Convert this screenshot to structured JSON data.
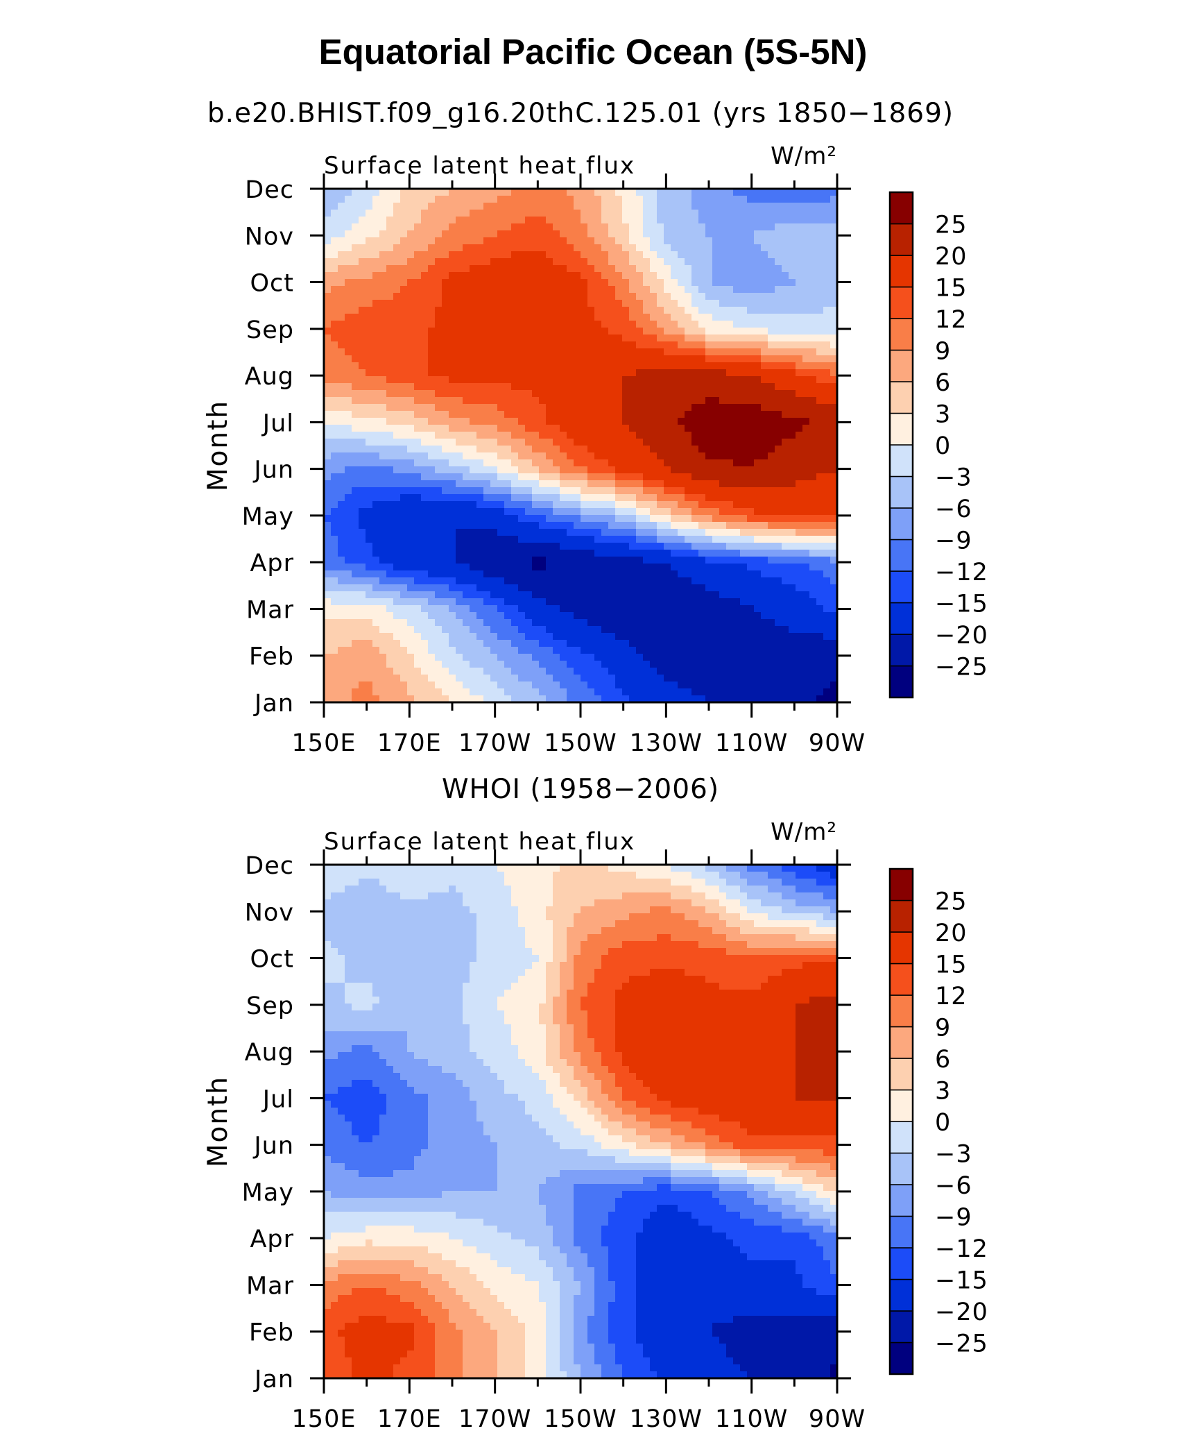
{
  "title": "Equatorial Pacific Ocean (5S-5N)",
  "colors": [
    "#00007F",
    "#0018A8",
    "#0030D8",
    "#1C4CF8",
    "#4875F6",
    "#7EA0F8",
    "#A8C3F8",
    "#D0E2FA",
    "#FFF0E0",
    "#FDD0B0",
    "#FCA87E",
    "#F97E48",
    "#F5501C",
    "#E53500",
    "#B82200",
    "#870000"
  ],
  "colorbar_labels": [
    "−25",
    "−20",
    "−15",
    "−12",
    "−9",
    "−6",
    "−3",
    "0",
    "3",
    "6",
    "9",
    "12",
    "15",
    "20",
    "25"
  ],
  "chart_data": [
    {
      "type": "heatmap",
      "subtitle": "b.e20.BHIST.f09_g16.20thC.125.01 (yrs 1850−1869)",
      "variable_label": "Surface latent heat flux",
      "units_label": "W/m²",
      "ylabel": "Month",
      "xlabel": "",
      "x_ticks": [
        "150E",
        "170E",
        "170W",
        "150W",
        "130W",
        "110W",
        "90W"
      ],
      "y_ticks": [
        "Jan",
        "Feb",
        "Mar",
        "Apr",
        "May",
        "Jun",
        "Jul",
        "Aug",
        "Sep",
        "Oct",
        "Nov",
        "Dec"
      ],
      "x_longitudes": [
        150,
        160,
        170,
        180,
        190,
        200,
        210,
        220,
        230,
        240,
        250,
        260,
        270
      ],
      "z": [
        [
          8,
          10,
          7,
          3,
          -1,
          -5,
          -10,
          -14,
          -18,
          -20,
          -22,
          -24,
          -26
        ],
        [
          6,
          8,
          3,
          -2,
          -6,
          -10,
          -14,
          -18,
          -22,
          -24,
          -24,
          -22,
          -24
        ],
        [
          2,
          2,
          -2,
          -6,
          -12,
          -18,
          -22,
          -24,
          -24,
          -23,
          -20,
          -18,
          -14
        ],
        [
          -10,
          -14,
          -18,
          -20,
          -24,
          -26,
          -24,
          -22,
          -20,
          -16,
          -14,
          -12,
          -10
        ],
        [
          -12,
          -16,
          -20,
          -20,
          -18,
          -12,
          -8,
          -4,
          4,
          10,
          14,
          16,
          16
        ],
        [
          -8,
          -10,
          -8,
          -4,
          0,
          6,
          12,
          16,
          20,
          24,
          25,
          22,
          20
        ],
        [
          0,
          2,
          4,
          8,
          10,
          14,
          18,
          20,
          24,
          28,
          28,
          26,
          24
        ],
        [
          10,
          12,
          14,
          16,
          16,
          16,
          18,
          20,
          22,
          22,
          20,
          16,
          12
        ],
        [
          12,
          14,
          14,
          16,
          18,
          18,
          16,
          14,
          8,
          2,
          0,
          -2,
          -2
        ],
        [
          8,
          10,
          12,
          16,
          18,
          18,
          16,
          10,
          2,
          -6,
          -8,
          -6,
          -4
        ],
        [
          -2,
          2,
          6,
          10,
          12,
          14,
          10,
          4,
          -4,
          -6,
          -6,
          -4,
          -4
        ],
        [
          -6,
          -2,
          4,
          6,
          8,
          10,
          8,
          2,
          -4,
          -8,
          -10,
          -12,
          -10
        ]
      ],
      "zlim": [
        -25,
        25
      ],
      "colorbar_levels": [
        -25,
        -20,
        -15,
        -12,
        -9,
        -6,
        -3,
        0,
        3,
        6,
        9,
        12,
        15,
        20,
        25
      ]
    },
    {
      "type": "heatmap",
      "subtitle": "WHOI (1958−2006)",
      "variable_label": "Surface latent heat flux",
      "units_label": "W/m²",
      "ylabel": "Month",
      "xlabel": "",
      "x_ticks": [
        "150E",
        "170E",
        "170W",
        "150W",
        "130W",
        "110W",
        "90W"
      ],
      "y_ticks": [
        "Jan",
        "Feb",
        "Mar",
        "Apr",
        "May",
        "Jun",
        "Jul",
        "Aug",
        "Sep",
        "Oct",
        "Nov",
        "Dec"
      ],
      "x_longitudes": [
        150,
        160,
        170,
        180,
        190,
        200,
        210,
        220,
        230,
        240,
        250,
        260,
        270
      ],
      "z": [
        [
          12,
          16,
          14,
          10,
          6,
          2,
          -6,
          -12,
          -16,
          -18,
          -20,
          -22,
          -26
        ],
        [
          14,
          17,
          16,
          10,
          6,
          2,
          -8,
          -14,
          -18,
          -20,
          -22,
          -22,
          -24
        ],
        [
          10,
          12,
          10,
          6,
          2,
          0,
          -6,
          -14,
          -18,
          -18,
          -16,
          -16,
          -12
        ],
        [
          0,
          2,
          2,
          0,
          -2,
          -4,
          -10,
          -14,
          -18,
          -16,
          -14,
          -14,
          -10
        ],
        [
          -6,
          -8,
          -8,
          -6,
          -6,
          -6,
          -10,
          -12,
          -14,
          -12,
          -8,
          -2,
          4
        ],
        [
          -10,
          -12,
          -10,
          -8,
          -6,
          -4,
          -2,
          2,
          6,
          10,
          14,
          14,
          14
        ],
        [
          -12,
          -14,
          -10,
          -8,
          -4,
          -2,
          4,
          12,
          16,
          18,
          18,
          20,
          20
        ],
        [
          -8,
          -10,
          -6,
          -4,
          -2,
          2,
          10,
          16,
          20,
          18,
          18,
          20,
          20
        ],
        [
          -4,
          -2,
          -6,
          -4,
          0,
          2,
          12,
          16,
          18,
          16,
          16,
          20,
          22
        ],
        [
          -2,
          -4,
          -4,
          -4,
          -2,
          0,
          10,
          14,
          14,
          14,
          12,
          14,
          14
        ],
        [
          -4,
          -6,
          -4,
          -4,
          -2,
          2,
          6,
          8,
          10,
          6,
          0,
          -4,
          -6
        ],
        [
          0,
          -2,
          0,
          -2,
          0,
          2,
          4,
          2,
          0,
          -4,
          -10,
          -14,
          -18
        ]
      ],
      "zlim": [
        -25,
        25
      ],
      "colorbar_levels": [
        -25,
        -20,
        -15,
        -12,
        -9,
        -6,
        -3,
        0,
        3,
        6,
        9,
        12,
        15,
        20,
        25
      ]
    }
  ]
}
